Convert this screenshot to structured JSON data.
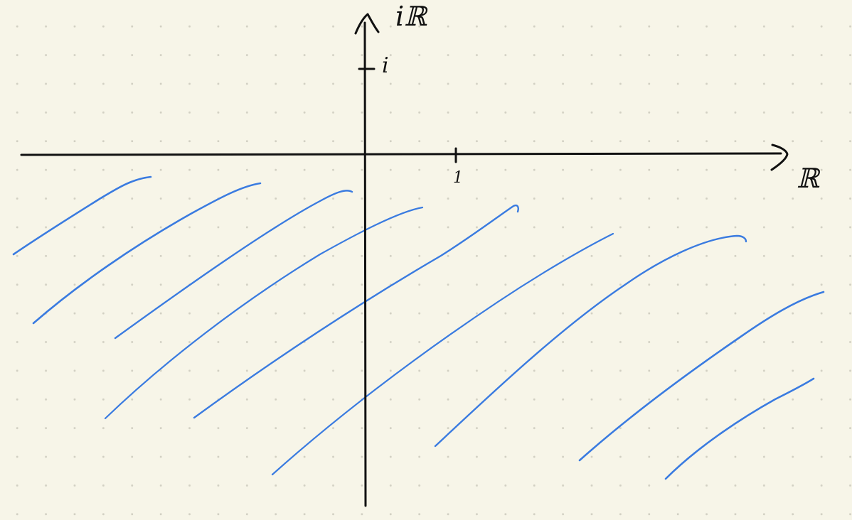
{
  "axes": {
    "real_label": "ℝ",
    "imaginary_label": "iℝ"
  },
  "ticks": {
    "imaginary_unit": "i",
    "real_unit": "1"
  },
  "colors": {
    "background": "#f7f5e8",
    "ink": "#111111",
    "hatching": "#3a7be0"
  },
  "shaded_region": "lower-half-plane"
}
